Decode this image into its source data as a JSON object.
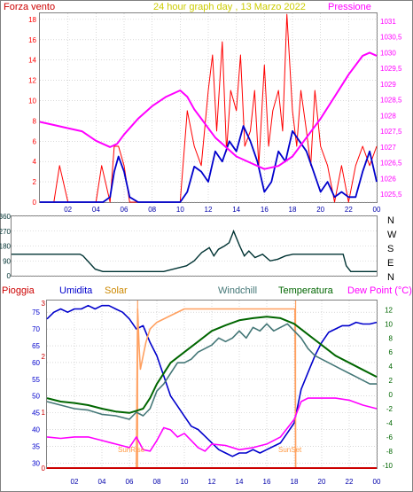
{
  "colors": {
    "background": "#ffffff",
    "frame": "#808080",
    "grid": "#c0c0c0",
    "wind": "#ff0000",
    "gust_blue": "#0000cc",
    "pressure": "#ff00ff",
    "direction": "#003333",
    "humidity": "#0000cc",
    "solar": "#ffa060",
    "windchill": "#447777",
    "temperature": "#006600",
    "dewpoint": "#ff00ff",
    "rain": "#cc0000",
    "yellow_title": "#cccc00"
  },
  "chart_data": [
    {
      "type": "line",
      "title": "24 hour graph day , 13 Marzo 2022",
      "left_label": "Forza vento",
      "right_label": "Pressione",
      "x_ticks": [
        "02",
        "04",
        "06",
        "08",
        "10",
        "12",
        "14",
        "16",
        "18",
        "20",
        "22",
        "00"
      ],
      "y_left_ticks": [
        "0",
        "2",
        "4",
        "6",
        "8",
        "10",
        "12",
        "14",
        "16",
        "18"
      ],
      "y_left_range": [
        0,
        18.6
      ],
      "y_right_ticks": [
        "1025,5",
        "1026",
        "1026,5",
        "1027",
        "1027,5",
        "1028",
        "1028,5",
        "1029",
        "1029,5",
        "1030",
        "1030,5",
        "1031"
      ],
      "y_right_range": [
        1025.25,
        1031.25
      ],
      "series": [
        {
          "color": "wind",
          "x": [
            0,
            0.5,
            1,
            1.4,
            2,
            2.5,
            3,
            3.5,
            4,
            4.4,
            5,
            5.3,
            5.6,
            6,
            6.4,
            7,
            7.5,
            8,
            8.5,
            9,
            9.5,
            10,
            10.5,
            11,
            11.5,
            12,
            12.3,
            12.6,
            13,
            13.3,
            13.6,
            14,
            14.3,
            14.6,
            15,
            15.3,
            15.6,
            16,
            16.3,
            16.6,
            17,
            17.3,
            17.6,
            18,
            18.3,
            18.6,
            19,
            19.3,
            19.6,
            20,
            20.5,
            21,
            21.5,
            22,
            22.5,
            23,
            23.5,
            24
          ],
          "y": [
            0,
            0,
            0,
            3.6,
            0,
            0,
            0,
            0,
            0,
            3.6,
            0,
            5.5,
            5.5,
            3.6,
            0,
            0,
            0,
            0,
            0,
            0,
            0,
            0,
            9,
            5.5,
            3.6,
            11,
            14.5,
            7,
            15.8,
            5,
            11,
            9,
            14.5,
            5.5,
            7,
            11,
            3.6,
            13.5,
            5.5,
            9,
            11,
            7,
            18.5,
            9,
            5.5,
            11,
            7,
            3.6,
            11,
            5.5,
            3.6,
            0,
            3.6,
            0,
            3.6,
            5.5,
            3.6,
            5.5
          ]
        },
        {
          "color": "gust_blue",
          "x": [
            0,
            1,
            2,
            3,
            4,
            4.5,
            5,
            5.3,
            5.6,
            6,
            6.4,
            7,
            8,
            9,
            10,
            10.5,
            11,
            11.5,
            12,
            12.5,
            13,
            13.5,
            14,
            14.5,
            15,
            15.5,
            16,
            16.5,
            17,
            17.5,
            18,
            18.5,
            19,
            19.5,
            20,
            20.5,
            21,
            21.5,
            22,
            22.5,
            23,
            23.5,
            24
          ],
          "y": [
            0,
            0,
            0,
            0,
            0,
            0,
            0.5,
            3,
            4.5,
            3,
            0.5,
            0,
            0,
            0,
            0,
            1,
            3.5,
            3,
            2,
            5,
            4,
            6,
            5,
            7.5,
            6,
            4,
            1,
            2,
            5,
            4,
            7,
            6,
            5,
            3,
            1,
            2,
            0.5,
            1,
            0.5,
            0.5,
            3,
            5,
            2
          ]
        },
        {
          "color": "pressure",
          "x": [
            0,
            1,
            2,
            3,
            4,
            5,
            5.5,
            6,
            7,
            8,
            9,
            10,
            10.5,
            11,
            11.5,
            12,
            12.5,
            13,
            13.5,
            14,
            15,
            16,
            17,
            18,
            18.5,
            19,
            20,
            21,
            22,
            23,
            23.5,
            24
          ],
          "y": [
            1027.8,
            1027.7,
            1027.6,
            1027.5,
            1027.2,
            1027.0,
            1027.1,
            1027.4,
            1027.9,
            1028.3,
            1028.6,
            1028.8,
            1028.6,
            1028.2,
            1027.9,
            1027.6,
            1027.3,
            1027.1,
            1026.9,
            1026.7,
            1026.5,
            1026.3,
            1026.4,
            1026.7,
            1027.0,
            1027.3,
            1027.9,
            1028.6,
            1029.3,
            1029.9,
            1030.0,
            1029.9
          ]
        }
      ]
    },
    {
      "type": "line",
      "right_labels": [
        "N",
        "W",
        "S",
        "E",
        "N"
      ],
      "y_left_ticks": [
        "0",
        "90",
        "180",
        "270",
        "360"
      ],
      "y_range": [
        0,
        360
      ],
      "series": [
        {
          "color": "direction",
          "x": [
            0,
            4.5,
            4.7,
            5.5,
            6,
            6.5,
            8,
            10,
            11.5,
            12,
            12.5,
            13,
            13.3,
            13.6,
            14,
            14.3,
            14.6,
            15,
            15.3,
            15.6,
            16,
            16.5,
            17,
            17.5,
            18,
            18.5,
            19,
            20,
            21,
            21.8,
            22,
            22.3,
            24
          ],
          "y": [
            130,
            130,
            120,
            40,
            25,
            25,
            25,
            25,
            60,
            90,
            140,
            170,
            120,
            160,
            180,
            200,
            270,
            180,
            120,
            150,
            110,
            130,
            90,
            100,
            120,
            130,
            130,
            130,
            130,
            130,
            60,
            25,
            25
          ]
        }
      ]
    },
    {
      "type": "line",
      "labels": {
        "rain": "Pioggia",
        "humidity": "Umidita",
        "solar": "Solar",
        "windchill": "Windchill",
        "temperature": "Temperatura",
        "dewpoint": "Dew Point (°C)",
        "sunrise": "SunRise",
        "sunset": "SunSet"
      },
      "x_ticks": [
        "02",
        "04",
        "06",
        "08",
        "10",
        "12",
        "14",
        "16",
        "18",
        "20",
        "22",
        "00"
      ],
      "y_left_ticks": [
        "30",
        "35",
        "40",
        "45",
        "50",
        "55",
        "60",
        "65",
        "70",
        "75"
      ],
      "y_left_range": [
        28.5,
        78.5
      ],
      "y_rain_ticks": [
        "0",
        "1",
        "2",
        "3"
      ],
      "y_right_ticks": [
        "-10",
        "-8",
        "-6",
        "-4",
        "-2",
        "0",
        "2",
        "4",
        "6",
        "8",
        "10",
        "12"
      ],
      "y_right_range": [
        -10.4,
        13.3
      ],
      "sunrise_hour": 6.6,
      "sunset_hour": 18.1,
      "series": [
        {
          "color": "humidity",
          "x": [
            0,
            0.5,
            1,
            1.5,
            2,
            2.5,
            3,
            3.5,
            4,
            4.5,
            5,
            5.5,
            6,
            6.5,
            7,
            7.5,
            8,
            8.5,
            9,
            9.5,
            10,
            10.5,
            11,
            11.5,
            12,
            12.5,
            13,
            13.5,
            14,
            14.5,
            15,
            15.5,
            16,
            16.5,
            17,
            17.5,
            18,
            18.5,
            19,
            19.5,
            20,
            20.5,
            21,
            21.5,
            22,
            22.5,
            23,
            23.5,
            24
          ],
          "y": [
            73,
            75,
            76,
            75,
            76,
            76,
            77,
            76,
            77,
            77,
            76,
            75,
            73,
            70,
            71,
            66,
            62,
            56,
            50,
            47,
            44,
            41,
            40,
            38,
            36,
            34,
            33,
            32,
            33,
            33,
            34,
            33,
            34,
            35,
            36,
            39,
            42,
            52,
            57,
            62,
            66,
            69,
            70,
            71,
            71,
            72,
            71.5,
            71.5,
            72
          ]
        },
        {
          "color": "solar",
          "x": [
            0,
            6.5,
            6.6,
            6.7,
            6.8,
            7,
            7.2,
            7.5,
            8,
            9,
            10,
            12,
            14,
            16,
            18,
            18.05,
            18.1,
            24
          ],
          "y": [
            28.5,
            28.5,
            76,
            65,
            58,
            62,
            66,
            70,
            72,
            74,
            76,
            76,
            76,
            76,
            76,
            76,
            28.5,
            28.5
          ]
        },
        {
          "color": "windchill",
          "x": [
            0,
            1,
            2,
            3,
            4,
            5,
            6,
            6.5,
            7,
            7.5,
            8,
            8.5,
            9,
            9.5,
            10,
            10.5,
            11,
            11.5,
            12,
            12.5,
            13,
            13.5,
            14,
            14.5,
            15,
            15.5,
            16,
            16.5,
            17,
            17.5,
            18,
            18.5,
            19,
            19.5,
            20,
            20.5,
            21,
            21.5,
            22,
            22.5,
            23,
            23.5,
            24
          ],
          "y": [
            -1,
            -1.5,
            -2,
            -2.2,
            -2.8,
            -3,
            -3.5,
            -2.5,
            -3,
            -2,
            0.5,
            1.5,
            3,
            4.5,
            4.5,
            5,
            6,
            6.5,
            7,
            8,
            7.5,
            8,
            9,
            8,
            9.5,
            9,
            10,
            9,
            9.5,
            10,
            9,
            8,
            6.5,
            5.5,
            5,
            4.5,
            4,
            3.5,
            3,
            2.5,
            2,
            1.5,
            1.5
          ]
        },
        {
          "color": "temperature",
          "x": [
            0,
            1,
            2,
            3,
            4,
            5,
            6,
            6.5,
            7,
            7.5,
            8,
            8.5,
            9,
            10,
            11,
            12,
            13,
            14,
            15,
            16,
            17,
            18,
            19,
            20,
            21,
            22,
            23,
            24
          ],
          "y": [
            -0.5,
            -1,
            -1.2,
            -1.5,
            -2,
            -2.4,
            -2.6,
            -2.3,
            -2,
            -0.5,
            1.5,
            3,
            4.5,
            6,
            7.5,
            9,
            9.8,
            10.5,
            10.8,
            11,
            10.8,
            10,
            8.5,
            7,
            5.5,
            4.5,
            3.5,
            2.5
          ]
        },
        {
          "color": "dewpoint",
          "x": [
            0,
            1,
            2,
            3,
            4,
            5,
            6,
            6.5,
            7,
            7.5,
            8,
            8.5,
            9,
            9.5,
            10,
            10.5,
            11,
            11.5,
            12,
            13,
            14,
            15,
            16,
            17,
            18,
            18.5,
            19,
            20,
            21,
            22,
            23,
            24
          ],
          "y": [
            -6,
            -6.2,
            -6,
            -6,
            -6.5,
            -7,
            -7.5,
            -6,
            -7.8,
            -8,
            -6.5,
            -4.7,
            -5,
            -6,
            -5.5,
            -6.5,
            -7.5,
            -8,
            -7,
            -7.2,
            -7.8,
            -7.5,
            -7,
            -6,
            -3.5,
            -1,
            -0.5,
            -0.5,
            -0.5,
            -0.8,
            -1.5,
            -2
          ]
        },
        {
          "color": "rain",
          "x": [
            0,
            24
          ],
          "y": [
            0,
            0
          ]
        }
      ]
    }
  ]
}
